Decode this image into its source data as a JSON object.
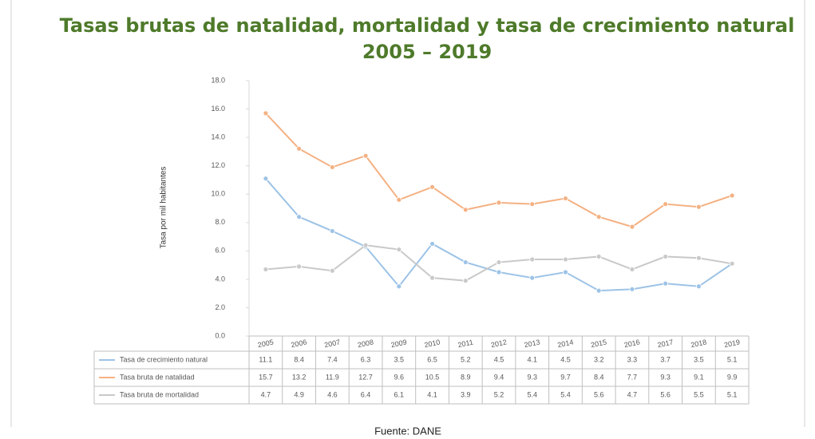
{
  "chart_data": {
    "type": "line",
    "title": "Tasas brutas de natalidad, mortalidad y tasa de crecimiento natural",
    "subtitle": "2005 – 2019",
    "y_label": "Tasa por mil habitantes",
    "source": "Fuente: DANE",
    "categories": [
      "2005",
      "2006",
      "2007",
      "2008",
      "2009",
      "2010",
      "2011",
      "2012",
      "2013",
      "2014",
      "2015",
      "2016",
      "2017",
      "2018",
      "2019"
    ],
    "series": [
      {
        "name": "Tasa de crecimiento natural",
        "color": "#9dc3e6",
        "values": [
          11.1,
          8.4,
          7.4,
          6.3,
          3.5,
          6.5,
          5.2,
          4.5,
          4.1,
          4.5,
          3.2,
          3.3,
          3.7,
          3.5,
          5.1
        ]
      },
      {
        "name": "Tasa bruta de natalidad",
        "color": "#f4b183",
        "values": [
          15.7,
          13.2,
          11.9,
          12.7,
          9.6,
          10.5,
          8.9,
          9.4,
          9.3,
          9.7,
          8.4,
          7.7,
          9.3,
          9.1,
          9.9
        ]
      },
      {
        "name": "Tasa bruta de mortalidad",
        "color": "#c9c9c9",
        "values": [
          4.7,
          4.9,
          4.6,
          6.4,
          6.1,
          4.1,
          3.9,
          5.2,
          5.4,
          5.4,
          5.6,
          4.7,
          5.6,
          5.5,
          5.1
        ]
      }
    ],
    "ylim": [
      0,
      18
    ],
    "yticks": [
      {
        "value": 0,
        "label": "0.0"
      },
      {
        "value": 2,
        "label": "2.0"
      },
      {
        "value": 4,
        "label": "4.0"
      },
      {
        "value": 6,
        "label": "6.0"
      },
      {
        "value": 8,
        "label": "8.0"
      },
      {
        "value": 10,
        "label": "10.0"
      },
      {
        "value": 12,
        "label": "12.0"
      },
      {
        "value": 14,
        "label": "14.0"
      },
      {
        "value": 16,
        "label": "16.0"
      },
      {
        "value": 18,
        "label": "18.0"
      }
    ],
    "grid": false
  }
}
